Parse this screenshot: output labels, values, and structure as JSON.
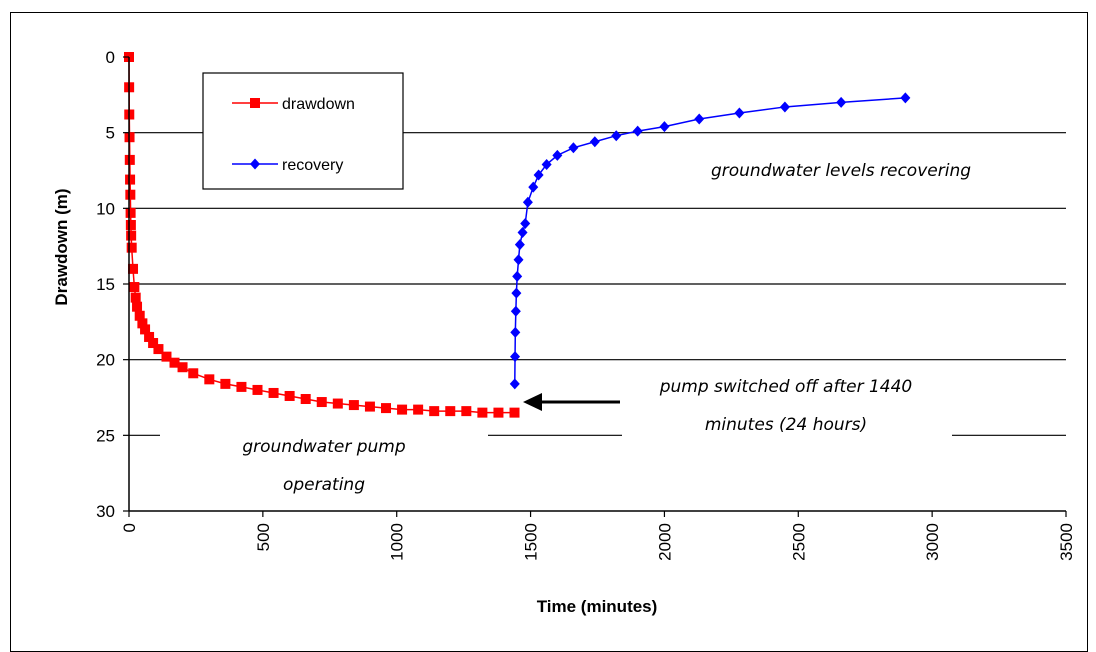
{
  "chart_data": {
    "type": "scatter",
    "xlabel": "Time (minutes)",
    "ylabel": "Drawdown (m)",
    "xlim": [
      0,
      3500
    ],
    "ylim": [
      0,
      30
    ],
    "y_inverted": true,
    "x_ticks": [
      "0",
      "500",
      "1000",
      "1500",
      "2000",
      "2500",
      "3000",
      "3500"
    ],
    "y_ticks": [
      "0",
      "5",
      "10",
      "15",
      "20",
      "25",
      "30"
    ],
    "grid": "horizontal",
    "legend_position": "top-left",
    "series": [
      {
        "name": "drawdown",
        "color": "#ff0000",
        "marker": "square",
        "points": [
          [
            0,
            0
          ],
          [
            0.5,
            2
          ],
          [
            1,
            3.8
          ],
          [
            2,
            5.3
          ],
          [
            3,
            6.8
          ],
          [
            4,
            8.1
          ],
          [
            5,
            9.1
          ],
          [
            6,
            10.3
          ],
          [
            7,
            11.1
          ],
          [
            8,
            11.8
          ],
          [
            10,
            12.6
          ],
          [
            15,
            14.0
          ],
          [
            20,
            15.2
          ],
          [
            25,
            15.9
          ],
          [
            30,
            16.5
          ],
          [
            40,
            17.1
          ],
          [
            50,
            17.6
          ],
          [
            60,
            18.0
          ],
          [
            75,
            18.5
          ],
          [
            90,
            18.9
          ],
          [
            110,
            19.3
          ],
          [
            140,
            19.8
          ],
          [
            170,
            20.2
          ],
          [
            200,
            20.5
          ],
          [
            240,
            20.9
          ],
          [
            300,
            21.3
          ],
          [
            360,
            21.6
          ],
          [
            420,
            21.8
          ],
          [
            480,
            22.0
          ],
          [
            540,
            22.2
          ],
          [
            600,
            22.4
          ],
          [
            660,
            22.6
          ],
          [
            720,
            22.8
          ],
          [
            780,
            22.9
          ],
          [
            840,
            23.0
          ],
          [
            900,
            23.1
          ],
          [
            960,
            23.2
          ],
          [
            1020,
            23.3
          ],
          [
            1080,
            23.3
          ],
          [
            1140,
            23.4
          ],
          [
            1200,
            23.4
          ],
          [
            1260,
            23.4
          ],
          [
            1320,
            23.5
          ],
          [
            1380,
            23.5
          ],
          [
            1440,
            23.5
          ]
        ]
      },
      {
        "name": "recovery",
        "color": "#0000ff",
        "marker": "diamond",
        "points": [
          [
            1441,
            21.6
          ],
          [
            1442,
            19.8
          ],
          [
            1443,
            18.2
          ],
          [
            1445,
            16.8
          ],
          [
            1447,
            15.6
          ],
          [
            1450,
            14.5
          ],
          [
            1455,
            13.4
          ],
          [
            1460,
            12.4
          ],
          [
            1470,
            11.6
          ],
          [
            1480,
            11.0
          ],
          [
            1490,
            9.6
          ],
          [
            1510,
            8.6
          ],
          [
            1530,
            7.8
          ],
          [
            1560,
            7.1
          ],
          [
            1600,
            6.5
          ],
          [
            1660,
            6.0
          ],
          [
            1740,
            5.6
          ],
          [
            1820,
            5.2
          ],
          [
            1900,
            4.9
          ],
          [
            2000,
            4.6
          ],
          [
            2130,
            4.1
          ],
          [
            2280,
            3.7
          ],
          [
            2450,
            3.3
          ],
          [
            2660,
            3.0
          ],
          [
            2900,
            2.7
          ]
        ]
      }
    ],
    "annotations": {
      "recovering": "groundwater levels recovering",
      "pump_off_line1": "pump switched off after 1440",
      "pump_off_line2": "minutes (24 hours)",
      "operating_line1": "groundwater pump",
      "operating_line2": "operating"
    }
  }
}
